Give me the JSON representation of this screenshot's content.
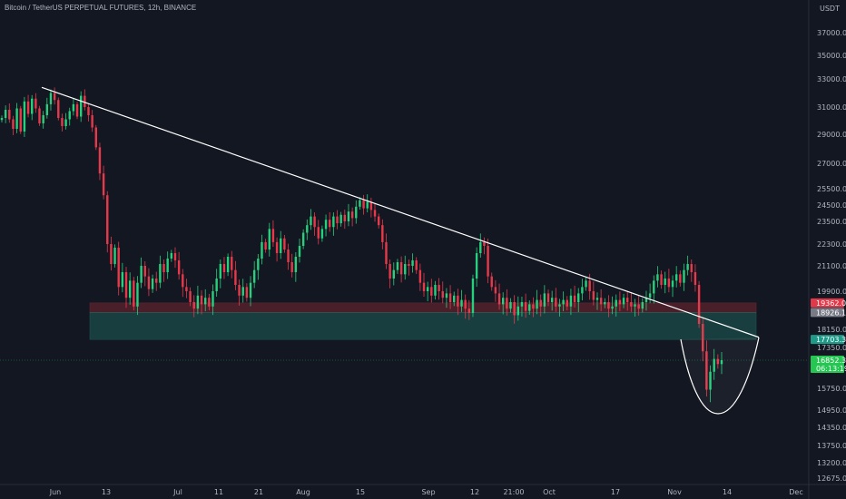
{
  "header": {
    "symbol_title": "Bitcoin / TetherUS PERPETUAL FUTURES, 12h, BINANCE",
    "currency": "USDT"
  },
  "colors": {
    "background": "#131722",
    "up": "#26d07c",
    "down": "#e8394a",
    "trendline": "#ffffff",
    "resistance_zone": "#8b2a34",
    "support_zone": "#1f6f63",
    "axis_text": "#b2b5be"
  },
  "badges": [
    {
      "label": "19362.0",
      "color": "#e0394a",
      "value": 19362
    },
    {
      "label": "18926.1",
      "color": "#787b86",
      "value": 18926.1
    },
    {
      "label": "17703.3",
      "color": "#1f9a88",
      "value": 17703.3
    },
    {
      "label": "16852.3",
      "color": "#26c653",
      "value": 16852.3
    },
    {
      "label": "06:13:19",
      "color": "#26c653",
      "value": 16852.3,
      "offset": 1
    }
  ],
  "chart_data": {
    "type": "candlestick",
    "title": "Bitcoin / TetherUS PERPETUAL FUTURES, 12h, BINANCE",
    "y_axis_unit": "USDT",
    "y_ticks": [
      37000,
      35000,
      33000,
      31000,
      29000,
      27000,
      25500,
      24500,
      23500,
      22300,
      21100,
      19900,
      18150,
      17350,
      15750,
      14950,
      14350,
      13750,
      13200,
      12675
    ],
    "y_tick_labels": [
      "37000.0",
      "35000.0",
      "33000.0",
      "31000.0",
      "29000.0",
      "27000.0",
      "25500.0",
      "24500.0",
      "23500.0",
      "22300.0",
      "21100.0",
      "19900.0",
      "18150.0",
      "17350.0",
      "15750.0",
      "14950.0",
      "14350.0",
      "13750.0",
      "13200.0",
      "12675.0"
    ],
    "x_ticks": [
      "Jun",
      "13",
      "Jul",
      "11",
      "21",
      "Aug",
      "15",
      "Sep",
      "12",
      "21:00",
      "Oct",
      "17",
      "Nov",
      "14",
      "Dec"
    ],
    "last_price": 16852.3,
    "countdown": "06:13:19",
    "zones": [
      {
        "name": "resistance",
        "from": 18926.1,
        "to": 19362.0
      },
      {
        "name": "support",
        "from": 17703.3,
        "to": 18926.1
      }
    ],
    "trendline": {
      "from": {
        "date": "Jun 1",
        "price": 32400
      },
      "to": {
        "date": "Nov 19",
        "price": 17800
      }
    },
    "candles": [
      30200,
      30800,
      30100,
      29400,
      30900,
      29200,
      31400,
      30500,
      31600,
      30900,
      29800,
      30400,
      31200,
      32000,
      31500,
      30200,
      29600,
      30100,
      30700,
      31200,
      30300,
      31800,
      31000,
      30400,
      29500,
      28100,
      26400,
      25100,
      22300,
      21200,
      22100,
      20100,
      20800,
      19600,
      20400,
      19200,
      20300,
      21100,
      20600,
      20000,
      20500,
      20300,
      21200,
      20800,
      21500,
      21800,
      21400,
      20700,
      20100,
      19900,
      19400,
      19100,
      19700,
      19300,
      19600,
      19200,
      19900,
      20500,
      21200,
      20800,
      21600,
      20900,
      20200,
      19700,
      20100,
      19600,
      20300,
      20900,
      21500,
      22400,
      22000,
      23100,
      22400,
      21800,
      22600,
      22000,
      21300,
      20800,
      21600,
      22200,
      22900,
      23300,
      23800,
      23200,
      22600,
      23100,
      23600,
      23200,
      23800,
      23400,
      23900,
      23500,
      24100,
      23700,
      24400,
      24800,
      24300,
      24700,
      24200,
      23800,
      23300,
      22400,
      21200,
      20500,
      20900,
      21300,
      20700,
      21200,
      21100,
      21400,
      20900,
      20300,
      19900,
      20100,
      19700,
      20200,
      19900,
      19600,
      19800,
      19400,
      19700,
      19200,
      19500,
      19100,
      18900,
      20500,
      21800,
      22400,
      22200,
      20600,
      20100,
      19800,
      19300,
      19600,
      19100,
      19400,
      18800,
      19200,
      19400,
      19000,
      19300,
      19100,
      19500,
      19200,
      19800,
      19400,
      19600,
      19200,
      19300,
      19500,
      19200,
      19700,
      19400,
      19800,
      20100,
      20400,
      19900,
      19500,
      19600,
      19300,
      19400,
      19100,
      19200,
      19500,
      19300,
      19600,
      19400,
      19200,
      19300,
      19100,
      19400,
      19600,
      19800,
      20400,
      20700,
      20200,
      20500,
      20100,
      20400,
      20700,
      20300,
      20900,
      21200,
      20800,
      20200,
      18400,
      17200,
      15700,
      16400,
      16900,
      16700,
      16852.3
    ]
  }
}
